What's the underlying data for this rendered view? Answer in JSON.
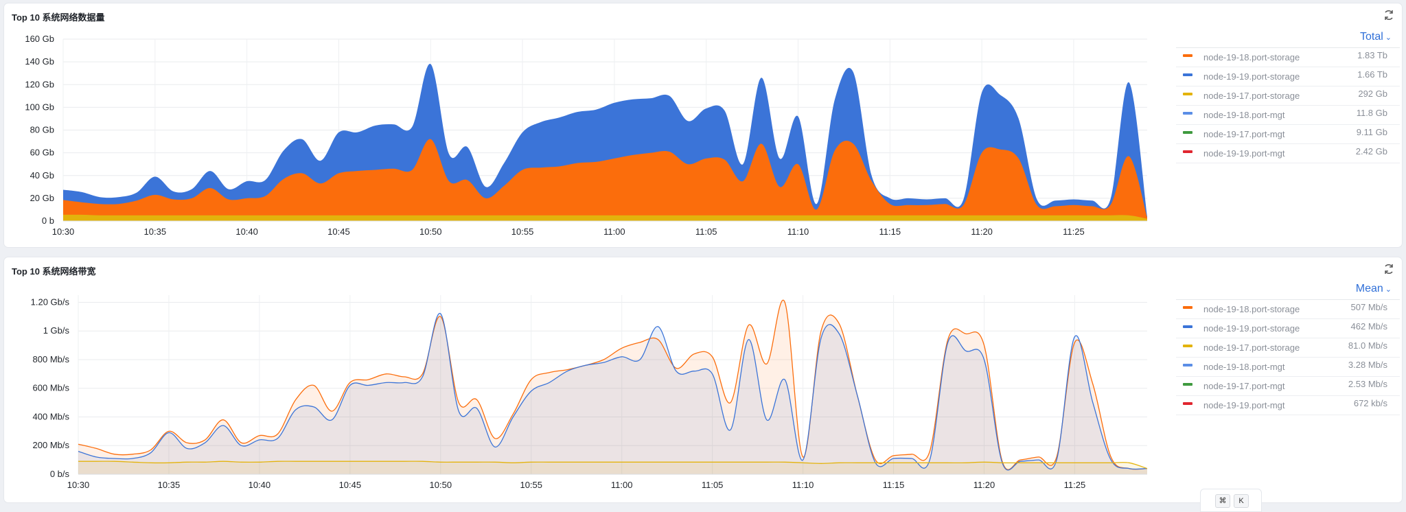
{
  "panels": [
    {
      "title": "Top 10 系统网络数据量",
      "legend_agg": "Total",
      "legend": [
        {
          "name": "node-19-18.port-storage",
          "value": "1.83 Tb",
          "color": "#fb6d0c"
        },
        {
          "name": "node-19-19.port-storage",
          "value": "1.66 Tb",
          "color": "#3b74d8"
        },
        {
          "name": "node-19-17.port-storage",
          "value": "292 Gb",
          "color": "#e3b30c"
        },
        {
          "name": "node-19-18.port-mgt",
          "value": "11.8 Gb",
          "color": "#5b8ee6"
        },
        {
          "name": "node-19-17.port-mgt",
          "value": "9.11 Gb",
          "color": "#3f9a3f"
        },
        {
          "name": "node-19-19.port-mgt",
          "value": "2.42 Gb",
          "color": "#e0262f"
        }
      ]
    },
    {
      "title": "Top 10 系统网络带宽",
      "legend_agg": "Mean",
      "legend": [
        {
          "name": "node-19-18.port-storage",
          "value": "507 Mb/s",
          "color": "#fb6d0c"
        },
        {
          "name": "node-19-19.port-storage",
          "value": "462 Mb/s",
          "color": "#3b74d8"
        },
        {
          "name": "node-19-17.port-storage",
          "value": "81.0 Mb/s",
          "color": "#e3b30c"
        },
        {
          "name": "node-19-18.port-mgt",
          "value": "3.28 Mb/s",
          "color": "#5b8ee6"
        },
        {
          "name": "node-19-17.port-mgt",
          "value": "2.53 Mb/s",
          "color": "#3f9a3f"
        },
        {
          "name": "node-19-19.port-mgt",
          "value": "672 kb/s",
          "color": "#e0262f"
        }
      ]
    }
  ],
  "kbd": {
    "cmd": "⌘",
    "key": "K"
  },
  "chart_data": [
    {
      "type": "area",
      "stacked": true,
      "ylim": [
        0,
        160
      ],
      "y_ticks": [
        0,
        20,
        40,
        60,
        80,
        100,
        120,
        140,
        160
      ],
      "y_tick_labels": [
        "0 b",
        "20 Gb",
        "40 Gb",
        "60 Gb",
        "80 Gb",
        "100 Gb",
        "120 Gb",
        "140 Gb",
        "160 Gb"
      ],
      "xlim": [
        "10:30",
        "11:29"
      ],
      "x_ticks": [
        "10:30",
        "10:35",
        "10:40",
        "10:45",
        "10:50",
        "10:55",
        "11:00",
        "11:05",
        "11:10",
        "11:15",
        "11:20",
        "11:25"
      ],
      "x": [
        "10:30",
        "10:31",
        "10:32",
        "10:33",
        "10:34",
        "10:35",
        "10:36",
        "10:37",
        "10:38",
        "10:39",
        "10:40",
        "10:41",
        "10:42",
        "10:43",
        "10:44",
        "10:45",
        "10:46",
        "10:47",
        "10:48",
        "10:49",
        "10:50",
        "10:51",
        "10:52",
        "10:53",
        "10:54",
        "10:55",
        "10:56",
        "10:57",
        "10:58",
        "10:59",
        "11:00",
        "11:01",
        "11:02",
        "11:03",
        "11:04",
        "11:05",
        "11:06",
        "11:07",
        "11:08",
        "11:09",
        "11:10",
        "11:11",
        "11:12",
        "11:13",
        "11:14",
        "11:15",
        "11:16",
        "11:17",
        "11:18",
        "11:19",
        "11:20",
        "11:21",
        "11:22",
        "11:23",
        "11:24",
        "11:25",
        "11:26",
        "11:27",
        "11:28",
        "11:29"
      ],
      "series": [
        {
          "name": "node-19-17.port-storage",
          "color": "#e3b30c",
          "values": [
            5.5,
            5.5,
            5,
            5,
            5,
            5,
            5,
            5,
            5,
            5,
            5,
            5,
            5,
            5,
            5,
            5,
            5,
            5,
            5,
            5,
            5,
            5,
            5,
            5,
            5,
            5,
            5,
            5,
            5,
            5,
            5,
            5,
            5,
            5,
            5,
            5,
            5,
            5,
            5,
            5,
            5,
            5,
            5,
            5,
            5,
            5,
            5,
            5,
            5,
            5,
            5,
            5,
            5,
            5,
            5,
            5,
            5,
            5,
            5,
            2
          ]
        },
        {
          "name": "node-19-18.port-storage",
          "color": "#fb6d0c",
          "values": [
            13,
            11,
            10,
            10,
            13,
            18,
            14,
            15,
            24,
            14,
            15,
            17,
            32,
            37,
            28,
            37,
            39,
            40,
            41,
            40,
            67,
            30,
            31,
            15,
            26,
            40,
            42,
            43,
            46,
            47,
            50,
            53,
            55,
            56,
            45,
            50,
            49,
            30,
            63,
            25,
            45,
            5,
            57,
            63,
            30,
            10,
            9,
            9,
            10,
            9,
            55,
            58,
            50,
            9,
            8,
            9,
            8,
            9,
            52,
            1
          ]
        },
        {
          "name": "node-19-19.port-storage",
          "color": "#3b74d8",
          "values": [
            9,
            9,
            6,
            6,
            7,
            16,
            7,
            8,
            15,
            9,
            15,
            14,
            25,
            30,
            20,
            36,
            34,
            39,
            39,
            38,
            66,
            24,
            29,
            10,
            20,
            33,
            40,
            43,
            45,
            46,
            49,
            49,
            48,
            49,
            38,
            44,
            43,
            15,
            58,
            25,
            42,
            5,
            45,
            63,
            5,
            5,
            6,
            5,
            5,
            5,
            53,
            48,
            35,
            5,
            5,
            5,
            5,
            5,
            65,
            1
          ]
        }
      ]
    },
    {
      "type": "area",
      "stacked": false,
      "ylim": [
        0,
        1.25
      ],
      "y_ticks": [
        0,
        0.2,
        0.4,
        0.6,
        0.8,
        1.0,
        1.2
      ],
      "y_tick_labels": [
        "0 b/s",
        "200 Mb/s",
        "400 Mb/s",
        "600 Mb/s",
        "800 Mb/s",
        "1 Gb/s",
        "1.20 Gb/s"
      ],
      "xlim": [
        "10:30",
        "11:29"
      ],
      "x_ticks": [
        "10:30",
        "10:35",
        "10:40",
        "10:45",
        "10:50",
        "10:55",
        "11:00",
        "11:05",
        "11:10",
        "11:15",
        "11:20",
        "11:25"
      ],
      "x": [
        "10:30",
        "10:31",
        "10:32",
        "10:33",
        "10:34",
        "10:35",
        "10:36",
        "10:37",
        "10:38",
        "10:39",
        "10:40",
        "10:41",
        "10:42",
        "10:43",
        "10:44",
        "10:45",
        "10:46",
        "10:47",
        "10:48",
        "10:49",
        "10:50",
        "10:51",
        "10:52",
        "10:53",
        "10:54",
        "10:55",
        "10:56",
        "10:57",
        "10:58",
        "10:59",
        "11:00",
        "11:01",
        "11:02",
        "11:03",
        "11:04",
        "11:05",
        "11:06",
        "11:07",
        "11:08",
        "11:09",
        "11:10",
        "11:11",
        "11:12",
        "11:13",
        "11:14",
        "11:15",
        "11:16",
        "11:17",
        "11:18",
        "11:19",
        "11:20",
        "11:21",
        "11:22",
        "11:23",
        "11:24",
        "11:25",
        "11:26",
        "11:27",
        "11:28",
        "11:29"
      ],
      "series": [
        {
          "name": "node-19-18.port-storage",
          "color": "#fb6d0c",
          "values": [
            0.21,
            0.18,
            0.14,
            0.14,
            0.17,
            0.3,
            0.22,
            0.24,
            0.38,
            0.22,
            0.27,
            0.28,
            0.52,
            0.62,
            0.44,
            0.64,
            0.66,
            0.7,
            0.68,
            0.7,
            1.1,
            0.5,
            0.52,
            0.25,
            0.42,
            0.66,
            0.71,
            0.73,
            0.76,
            0.8,
            0.88,
            0.92,
            0.94,
            0.74,
            0.84,
            0.82,
            0.5,
            1.04,
            0.77,
            1.2,
            0.12,
            1.0,
            1.05,
            0.55,
            0.1,
            0.13,
            0.14,
            0.16,
            0.94,
            0.98,
            0.9,
            0.09,
            0.1,
            0.12,
            0.12,
            0.92,
            0.63,
            0.12,
            0.04,
            0.04
          ]
        },
        {
          "name": "node-19-19.port-storage",
          "color": "#3b74d8",
          "values": [
            0.16,
            0.12,
            0.11,
            0.11,
            0.15,
            0.29,
            0.18,
            0.22,
            0.34,
            0.2,
            0.24,
            0.25,
            0.45,
            0.47,
            0.38,
            0.62,
            0.62,
            0.64,
            0.64,
            0.68,
            1.12,
            0.44,
            0.46,
            0.19,
            0.4,
            0.58,
            0.64,
            0.72,
            0.76,
            0.78,
            0.82,
            0.8,
            1.03,
            0.72,
            0.72,
            0.7,
            0.31,
            0.94,
            0.38,
            0.66,
            0.1,
            0.95,
            0.98,
            0.55,
            0.08,
            0.11,
            0.11,
            0.1,
            0.92,
            0.86,
            0.8,
            0.08,
            0.09,
            0.1,
            0.1,
            0.96,
            0.5,
            0.1,
            0.04,
            0.04
          ]
        },
        {
          "name": "node-19-17.port-storage",
          "color": "#e3b30c",
          "values": [
            0.09,
            0.09,
            0.09,
            0.085,
            0.08,
            0.08,
            0.085,
            0.085,
            0.09,
            0.085,
            0.085,
            0.09,
            0.09,
            0.09,
            0.09,
            0.09,
            0.09,
            0.09,
            0.09,
            0.09,
            0.085,
            0.085,
            0.085,
            0.085,
            0.08,
            0.085,
            0.085,
            0.085,
            0.085,
            0.085,
            0.085,
            0.085,
            0.085,
            0.085,
            0.085,
            0.085,
            0.085,
            0.085,
            0.085,
            0.085,
            0.08,
            0.075,
            0.08,
            0.08,
            0.08,
            0.08,
            0.08,
            0.08,
            0.08,
            0.08,
            0.085,
            0.08,
            0.08,
            0.08,
            0.08,
            0.08,
            0.08,
            0.08,
            0.08,
            0.04
          ]
        }
      ]
    }
  ]
}
